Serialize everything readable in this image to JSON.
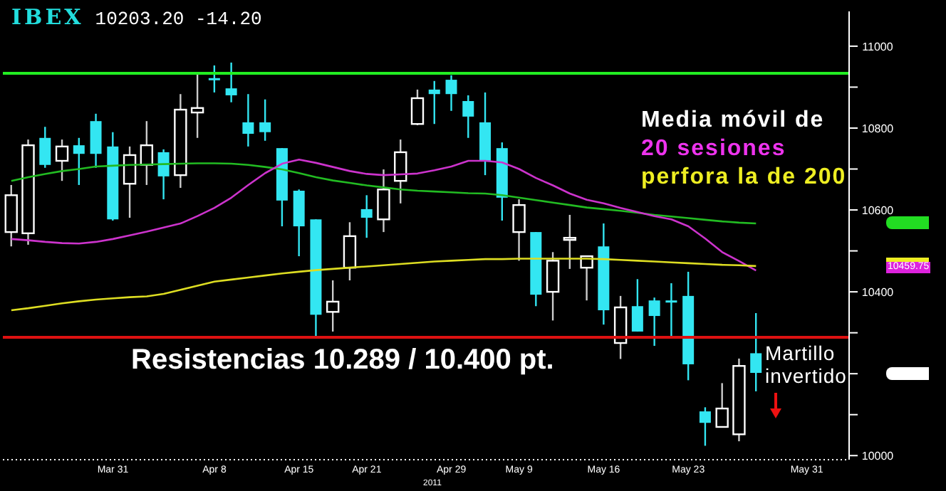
{
  "chart_data": {
    "type": "candlestick",
    "title": "IBEX",
    "subtitle": "10203.20  -14.20",
    "categories": [
      null,
      null,
      null,
      null,
      null,
      null,
      "Mar 31",
      null,
      null,
      null,
      null,
      null,
      "Apr 8",
      null,
      null,
      null,
      null,
      "Apr 15",
      null,
      null,
      null,
      "Apr 21",
      null,
      null,
      null,
      null,
      "Apr 29",
      null,
      null,
      null,
      "May 9",
      null,
      null,
      null,
      null,
      "May 16",
      null,
      null,
      null,
      null,
      "May 23",
      null,
      null,
      null,
      null,
      null,
      null,
      "May 31",
      null,
      null
    ],
    "ohlc": [
      [
        10546,
        10661,
        10511,
        10636
      ],
      [
        10543,
        10772,
        10515,
        10758
      ],
      [
        10776,
        10803,
        10703,
        10710
      ],
      [
        10720,
        10772,
        10671,
        10755
      ],
      [
        10758,
        10776,
        10661,
        10737
      ],
      [
        10817,
        10835,
        10703,
        10737
      ],
      [
        10755,
        10790,
        10574,
        10577
      ],
      [
        10664,
        10755,
        10581,
        10734
      ],
      [
        10710,
        10817,
        10661,
        10758
      ],
      [
        10741,
        10748,
        10626,
        10682
      ],
      [
        10685,
        10883,
        10654,
        10845
      ],
      [
        10838,
        10932,
        10776,
        10849
      ],
      [
        10922,
        10953,
        10887,
        10918
      ],
      [
        10897,
        10960,
        10863,
        10880
      ],
      [
        10814,
        10883,
        10755,
        10786
      ],
      [
        10814,
        10870,
        10769,
        10790
      ],
      [
        10751,
        10751,
        10560,
        10623
      ],
      [
        10647,
        10650,
        10487,
        10560
      ],
      [
        10577,
        10577,
        10289,
        10344
      ],
      [
        10351,
        10428,
        10303,
        10376
      ],
      [
        10459,
        10570,
        10428,
        10536
      ],
      [
        10602,
        10636,
        10532,
        10581
      ],
      [
        10577,
        10699,
        10546,
        10650
      ],
      [
        10671,
        10772,
        10616,
        10741
      ],
      [
        10810,
        10894,
        10807,
        10873
      ],
      [
        10894,
        10915,
        10810,
        10883
      ],
      [
        10918,
        10929,
        10842,
        10883
      ],
      [
        10866,
        10880,
        10776,
        10828
      ],
      [
        10814,
        10887,
        10685,
        10720
      ],
      [
        10751,
        10765,
        10574,
        10630
      ],
      [
        10546,
        10626,
        10476,
        10612
      ],
      [
        10546,
        10546,
        10365,
        10393
      ],
      [
        10400,
        10497,
        10330,
        10476
      ],
      [
        10529,
        10588,
        10456,
        10532
      ],
      [
        10459,
        10487,
        10379,
        10487
      ],
      [
        10511,
        10567,
        10320,
        10355
      ],
      [
        10275,
        10390,
        10236,
        10362
      ],
      [
        10365,
        10431,
        10303,
        10303
      ],
      [
        10379,
        10386,
        10268,
        10341
      ],
      [
        10379,
        10421,
        10289,
        10376
      ],
      [
        10390,
        10449,
        10184,
        10223
      ],
      [
        10108,
        10118,
        10024,
        10080
      ],
      [
        10070,
        10177,
        10070,
        10115
      ],
      [
        10052,
        10237,
        10035,
        10219
      ],
      [
        10250,
        10348,
        10157,
        10202
      ],
      null,
      null,
      null,
      null,
      null
    ],
    "colors": [
      "#ffffff",
      "#ffffff",
      "#33e6f2",
      "#ffffff",
      "#33e6f2",
      "#33e6f2",
      "#33e6f2",
      "#ffffff",
      "#ffffff",
      "#33e6f2",
      "#ffffff",
      "#ffffff",
      "#33e6f2",
      "#33e6f2",
      "#33e6f2",
      "#33e6f2",
      "#33e6f2",
      "#33e6f2",
      "#33e6f2",
      "#ffffff",
      "#ffffff",
      "#33e6f2",
      "#ffffff",
      "#ffffff",
      "#ffffff",
      "#33e6f2",
      "#33e6f2",
      "#33e6f2",
      "#33e6f2",
      "#33e6f2",
      "#ffffff",
      "#33e6f2",
      "#ffffff",
      "#ffffff",
      "#ffffff",
      "#33e6f2",
      "#ffffff",
      "#33e6f2",
      "#33e6f2",
      "#33e6f2",
      "#33e6f2",
      "#33e6f2",
      "#ffffff",
      "#ffffff",
      "#33e6f2",
      null,
      null,
      null,
      null,
      null
    ],
    "series": [
      {
        "type": "line",
        "color": "#22bb22",
        "values": [
          10671,
          10680,
          10688,
          10695,
          10700,
          10706,
          10708,
          10710,
          10711,
          10712,
          10713,
          10714,
          10714,
          10713,
          10710,
          10705,
          10699,
          10690,
          10680,
          10672,
          10666,
          10660,
          10655,
          10650,
          10647,
          10645,
          10643,
          10641,
          10640,
          10636,
          10630,
          10624,
          10618,
          10612,
          10606,
          10602,
          10598,
          10593,
          10588,
          10584,
          10580,
          10576,
          10572,
          10569,
          10567,
          null,
          null,
          null,
          null,
          null
        ]
      },
      {
        "type": "line",
        "color": "#cc33cc",
        "values": [
          10529,
          10526,
          10522,
          10519,
          10518,
          10522,
          10529,
          10538,
          10547,
          10557,
          10567,
          10585,
          10605,
          10630,
          10661,
          10690,
          10713,
          10723,
          10715,
          10705,
          10695,
          10688,
          10685,
          10687,
          10689,
          10697,
          10706,
          10720,
          10720,
          10716,
          10700,
          10678,
          10660,
          10640,
          10625,
          10616,
          10605,
          10595,
          10585,
          10577,
          10560,
          10530,
          10497,
          10475,
          10452,
          null,
          null,
          null,
          null,
          null
        ]
      },
      {
        "type": "line",
        "color": "#dddd22",
        "values": [
          10355,
          10360,
          10366,
          10372,
          10377,
          10381,
          10384,
          10387,
          10389,
          10395,
          10405,
          10415,
          10425,
          10430,
          10435,
          10440,
          10445,
          10449,
          10453,
          10456,
          10459,
          10462,
          10465,
          10468,
          10471,
          10474,
          10476,
          10478,
          10480,
          10480,
          10481,
          10481,
          10481,
          10481,
          10481,
          10480,
          10478,
          10476,
          10474,
          10472,
          10470,
          10468,
          10466,
          10465,
          10463,
          null,
          null,
          null,
          null,
          null
        ]
      }
    ],
    "ylim": [
      9990,
      11085
    ],
    "yticks": [
      10000,
      {
        "value": 10100,
        "label": null
      },
      {
        "value": 10200,
        "label": null
      },
      {
        "value": 10300,
        "label": null
      },
      10400,
      {
        "value": 10500,
        "label": null
      },
      10600,
      {
        "value": 10700,
        "label": null
      },
      10800,
      {
        "value": 10900,
        "label": null
      },
      11000
    ],
    "ref_lines": [
      {
        "axis": "y",
        "value": 10934,
        "color": "#22ee22"
      },
      {
        "axis": "y",
        "value": 10289,
        "color": "#dd1111"
      }
    ],
    "annotations": [
      "Resistencias 10.289 / 10.400 pt.",
      "Media móvil de",
      "20 sesiones",
      "perfora la de 200",
      "Martillo",
      "invertido",
      "2011",
      "10459.75"
    ]
  }
}
